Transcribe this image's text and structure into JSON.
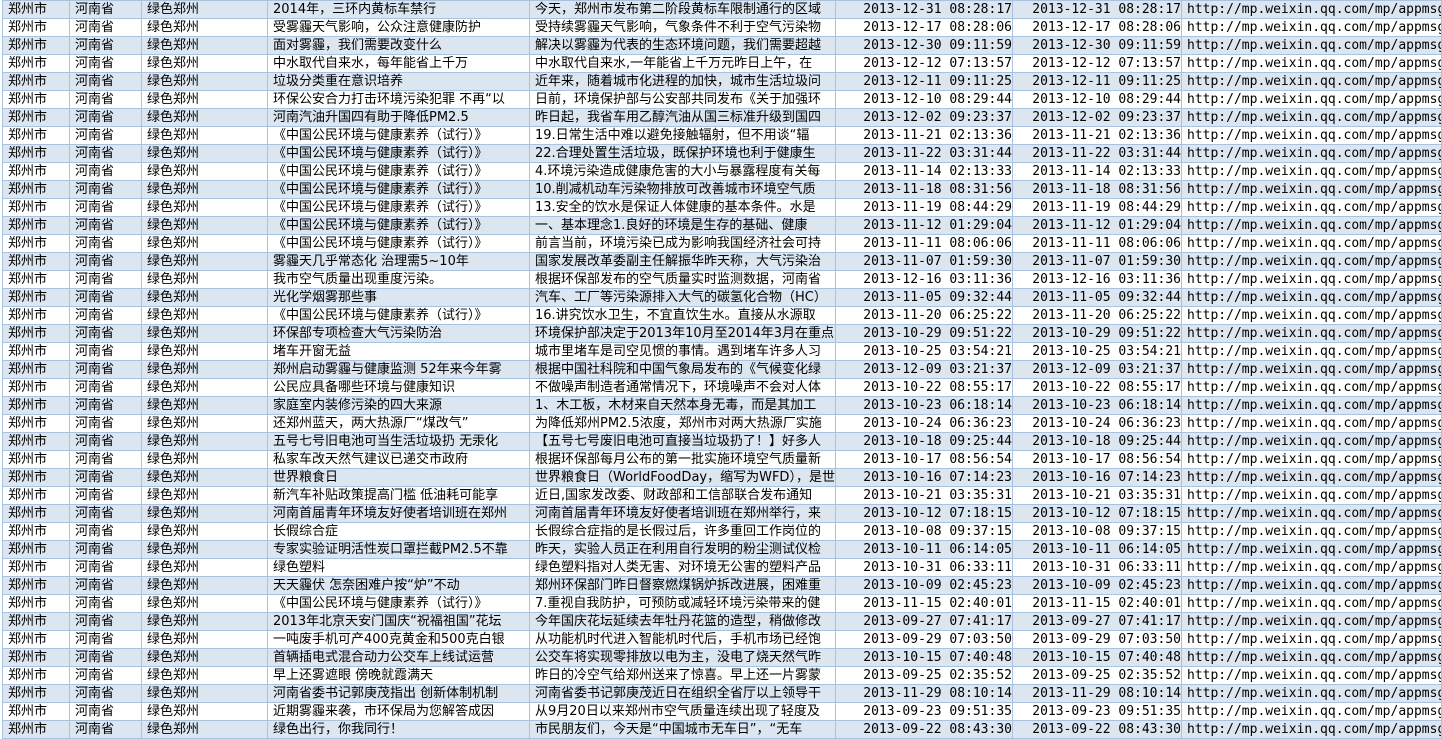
{
  "colors": {
    "row_odd_bg": "#dce6f1",
    "row_even_bg": "#ffffff",
    "grid_line": "#a9c2df",
    "text": "#000000"
  },
  "table": {
    "repeated": {
      "city": "郑州市",
      "province": "河南省",
      "account": "绿色郑州",
      "url": "http://mp.weixin.qq.com/mp/appmsg"
    },
    "row_fields": [
      "title",
      "summary",
      "time1",
      "time2"
    ],
    "rows": [
      [
        "2014年，三环内黄标车禁行",
        "今天，郑州市发布第二阶段黄标车限制通行的区域",
        "2013-12-31 08:28:17",
        "2013-12-31 08:28:17"
      ],
      [
        "受雾霾天气影响，公众注意健康防护",
        "受持续雾霾天气影响，气象条件不利于空气污染物",
        "2013-12-17 08:28:06",
        "2013-12-17 08:28:06"
      ],
      [
        "面对雾霾，我们需要改变什么",
        "解决以雾霾为代表的生态环境问题，我们需要超越",
        "2013-12-30 09:11:59",
        "2013-12-30 09:11:59"
      ],
      [
        "中水取代自来水，每年能省上千万",
        "中水取代自来水,一年能省上千万元昨日上午，在",
        "2013-12-12 07:13:57",
        "2013-12-12 07:13:57"
      ],
      [
        "垃圾分类重在意识培养",
        "近年来，随着城市化进程的加快，城市生活垃圾问",
        "2013-12-11 09:11:25",
        "2013-12-11 09:11:25"
      ],
      [
        "环保公安合力打击环境污染犯罪 不再“以",
        "日前，环境保护部与公安部共同发布《关于加强环",
        "2013-12-10 08:29:44",
        "2013-12-10 08:29:44"
      ],
      [
        "河南汽油升国四有助于降低PM2.5",
        "昨日起，我省车用乙醇汽油从国三标准升级到国四",
        "2013-12-02 09:23:37",
        "2013-12-02 09:23:37"
      ],
      [
        "《中国公民环境与健康素养（试行）》",
        "19.日常生活中难以避免接触辐射，但不用谈“辐",
        "2013-11-21 02:13:36",
        "2013-11-21 02:13:36"
      ],
      [
        "《中国公民环境与健康素养（试行）》",
        "22.合理处置生活垃圾，既保护环境也利于健康生",
        "2013-11-22 03:31:44",
        "2013-11-22 03:31:44"
      ],
      [
        "《中国公民环境与健康素养（试行）》",
        "4.环境污染造成健康危害的大小与暴露程度有关每",
        "2013-11-14 02:13:33",
        "2013-11-14 02:13:33"
      ],
      [
        "《中国公民环境与健康素养（试行）》",
        "10.削减机动车污染物排放可改善城市环境空气质",
        "2013-11-18 08:31:56",
        "2013-11-18 08:31:56"
      ],
      [
        "《中国公民环境与健康素养（试行）》",
        "13.安全的饮水是保证人体健康的基本条件。水是",
        "2013-11-19 08:44:29",
        "2013-11-19 08:44:29"
      ],
      [
        "《中国公民环境与健康素养（试行）》",
        "一、基本理念1.良好的环境是生存的基础、健康",
        "2013-11-12 01:29:04",
        "2013-11-12 01:29:04"
      ],
      [
        "《中国公民环境与健康素养（试行）》",
        "前言当前，环境污染已成为影响我国经济社会可持",
        "2013-11-11 08:06:06",
        "2013-11-11 08:06:06"
      ],
      [
        "雾霾天几乎常态化 治理需5~10年",
        "国家发展改革委副主任解振华昨天称，大气污染治",
        "2013-11-07 01:59:30",
        "2013-11-07 01:59:30"
      ],
      [
        "我市空气质量出现重度污染。",
        "根据环保部发布的空气质量实时监测数据，河南省",
        "2013-12-16 03:11:36",
        "2013-12-16 03:11:36"
      ],
      [
        "光化学烟雾那些事",
        "汽车、工厂等污染源排入大气的碳氢化合物（HC）",
        "2013-11-05 09:32:44",
        "2013-11-05 09:32:44"
      ],
      [
        "《中国公民环境与健康素养（试行）》",
        "16.讲究饮水卫生，不宜直饮生水。直接从水源取",
        "2013-11-20 06:25:22",
        "2013-11-20 06:25:22"
      ],
      [
        "环保部专项检查大气污染防治",
        "环境保护部决定于2013年10月至2014年3月在重点",
        "2013-10-29 09:51:22",
        "2013-10-29 09:51:22"
      ],
      [
        "堵车开窗无益",
        "城市里堵车是司空见惯的事情。遇到堵车许多人习",
        "2013-10-25 03:54:21",
        "2013-10-25 03:54:21"
      ],
      [
        "郑州启动雾霾与健康监测 52年来今年雾",
        "根据中国社科院和中国气象局发布的《气候变化绿",
        "2013-12-09 03:21:37",
        "2013-12-09 03:21:37"
      ],
      [
        "公民应具备哪些环境与健康知识",
        "不做噪声制造者通常情况下，环境噪声不会对人体",
        "2013-10-22 08:55:17",
        "2013-10-22 08:55:17"
      ],
      [
        "家庭室内装修污染的四大来源",
        "1、木工板，木材来自天然本身无毒，而是其加工",
        "2013-10-23 06:18:14",
        "2013-10-23 06:18:14"
      ],
      [
        "还郑州蓝天，两大热源厂“煤改气”",
        "为降低郑州PM2.5浓度，郑州市对两大热源厂实施",
        "2013-10-24 06:36:23",
        "2013-10-24 06:36:23"
      ],
      [
        "五号七号旧电池可当生活垃圾扔 无汞化",
        "【五号七号废旧电池可直接当垃圾扔了！】好多人",
        "2013-10-18 09:25:44",
        "2013-10-18 09:25:44"
      ],
      [
        "私家车改天然气建议已递交市政府",
        "根据环保部每月公布的第一批实施环境空气质量新",
        "2013-10-17 08:56:54",
        "2013-10-17 08:56:54"
      ],
      [
        "世界粮食日",
        "世界粮食日（WorldFoodDay，缩写为WFD），是世",
        "2013-10-16 07:14:23",
        "2013-10-16 07:14:23"
      ],
      [
        "新汽车补贴政策提高门槛 低油耗可能享",
        "近日,国家发改委、财政部和工信部联合发布通知",
        "2013-10-21 03:35:31",
        "2013-10-21 03:35:31"
      ],
      [
        "河南首届青年环境友好使者培训班在郑州",
        "河南首届青年环境友好使者培训班在郑州举行，来",
        "2013-10-12 07:18:15",
        "2013-10-12 07:18:15"
      ],
      [
        "长假综合症",
        "长假综合症指的是长假过后，许多重回工作岗位的",
        "2013-10-08 09:37:15",
        "2013-10-08 09:37:15"
      ],
      [
        "专家实验证明活性炭口罩拦截PM2.5不靠",
        "昨天，实验人员正在利用自行发明的粉尘测试仪检",
        "2013-10-11 06:14:05",
        "2013-10-11 06:14:05"
      ],
      [
        "绿色塑料",
        "绿色塑料指对人类无害、对环境无公害的塑料产品",
        "2013-10-31 06:33:11",
        "2013-10-31 06:33:11"
      ],
      [
        "天天霾伏 怎奈困难户按“炉”不动",
        "郑州环保部门昨日督察燃煤锅炉拆改进展，困难重",
        "2013-10-09 02:45:23",
        "2013-10-09 02:45:23"
      ],
      [
        "《中国公民环境与健康素养（试行）》",
        "7.重视自我防护，可预防或减轻环境污染带来的健",
        "2013-11-15 02:40:01",
        "2013-11-15 02:40:01"
      ],
      [
        "2013年北京天安门国庆“祝福祖国”花坛",
        "今年国庆花坛延续去年牡丹花篮的造型，稍做修改",
        "2013-09-27 07:41:17",
        "2013-09-27 07:41:17"
      ],
      [
        "一吨废手机可产400克黄金和500克白银",
        "从功能机时代进入智能机时代后，手机市场已经饱",
        "2013-09-29 07:03:50",
        "2013-09-29 07:03:50"
      ],
      [
        "首辆插电式混合动力公交车上线试运营",
        "公交车将实现零排放以电为主，没电了烧天然气昨",
        "2013-10-15 07:40:48",
        "2013-10-15 07:40:48"
      ],
      [
        "早上还雾遮眼 傍晚就霞满天",
        "昨日的冷空气给郑州送来了惊喜。早上还一片雾蒙",
        "2013-09-25 02:35:52",
        "2013-09-25 02:35:52"
      ],
      [
        "河南省委书记郭庚茂指出 创新体制机制",
        "河南省委书记郭庚茂近日在组织全省厅以上领导干",
        "2013-11-29 08:10:14",
        "2013-11-29 08:10:14"
      ],
      [
        "近期雾霾来袭，市环保局为您解答成因",
        "从9月20日以来郑州市空气质量连续出现了轻度及",
        "2013-09-23 09:51:35",
        "2013-09-23 09:51:35"
      ],
      [
        "绿色出行，你我同行！",
        "市民朋友们，今天是“中国城市无车日”，“无车",
        "2013-09-22 08:43:30",
        "2013-09-22 08:43:30"
      ]
    ]
  }
}
